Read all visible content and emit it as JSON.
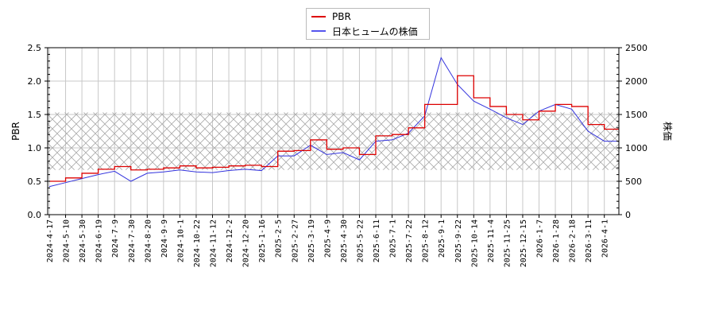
{
  "chart_data": {
    "type": "line",
    "title": "",
    "legend": {
      "position": "top-center",
      "entries": [
        {
          "label": "PBR",
          "color": "#dd0000"
        },
        {
          "label": "日本ヒュームの株価",
          "color": "#3333dd"
        }
      ]
    },
    "y_left": {
      "label": "PBR",
      "ticks": [
        "0.0",
        "0.5",
        "1.0",
        "1.5",
        "2.0",
        "2.5"
      ],
      "range": [
        0,
        2.5
      ]
    },
    "y_right": {
      "label": "株価",
      "ticks": [
        "0",
        "500",
        "1000",
        "1500",
        "2000",
        "2500"
      ],
      "range": [
        0,
        2500
      ]
    },
    "x_ticks": [
      "2024-4-17",
      "2024-5-10",
      "2024-5-30",
      "2024-6-19",
      "2024-7-9",
      "2024-7-30",
      "2024-8-20",
      "2024-9-9",
      "2024-10-1",
      "2024-10-22",
      "2024-11-12",
      "2024-12-2",
      "2024-12-20",
      "2025-1-16",
      "2025-2-5",
      "2025-2-27",
      "2025-3-19",
      "2025-4-9",
      "2025-4-30",
      "2025-5-22",
      "2025-6-11",
      "2025-7-1",
      "2025-7-22",
      "2025-8-12",
      "2025-9-1",
      "2025-9-22",
      "2025-10-14",
      "2025-11-4",
      "2025-11-25",
      "2025-12-15",
      "2026-1-7",
      "2026-1-28",
      "2026-2-18",
      "2026-3-11",
      "2026-4-1"
    ],
    "band": {
      "pbr_low": 0.67,
      "pbr_high": 1.53,
      "style": "cross-hatch"
    },
    "grid": true,
    "x": [
      "2024-4-17",
      "2024-5-10",
      "2024-5-30",
      "2024-6-19",
      "2024-7-9",
      "2024-7-30",
      "2024-8-20",
      "2024-9-9",
      "2024-10-1",
      "2024-10-22",
      "2024-11-12",
      "2024-12-2",
      "2024-12-20",
      "2025-1-16",
      "2025-2-5",
      "2025-2-27",
      "2025-3-19",
      "2025-4-9",
      "2025-4-30",
      "2025-5-22",
      "2025-6-11",
      "2025-7-1",
      "2025-7-22",
      "2025-8-12",
      "2025-9-1",
      "2025-9-22",
      "2025-10-14",
      "2025-11-4",
      "2025-11-25",
      "2025-12-15",
      "2026-1-7",
      "2026-1-28",
      "2026-2-18",
      "2026-3-11",
      "2026-4-1"
    ],
    "series": [
      {
        "name": "PBR",
        "values": [
          0.5,
          0.55,
          0.62,
          0.68,
          0.72,
          0.67,
          0.68,
          0.7,
          0.73,
          0.7,
          0.71,
          0.73,
          0.74,
          0.72,
          0.95,
          0.96,
          1.12,
          0.98,
          1.0,
          0.9,
          1.18,
          1.2,
          1.3,
          1.65,
          1.65,
          2.08,
          1.75,
          1.62,
          1.5,
          1.42,
          1.55,
          1.65,
          1.62,
          1.35,
          1.28
        ]
      },
      {
        "name": "日本ヒュームの株価",
        "values": [
          420,
          480,
          540,
          600,
          650,
          500,
          620,
          640,
          670,
          640,
          630,
          660,
          680,
          660,
          880,
          880,
          1040,
          900,
          930,
          820,
          1100,
          1120,
          1220,
          1480,
          2350,
          1950,
          1700,
          1580,
          1450,
          1350,
          1550,
          1650,
          1580,
          1250,
          1100
        ]
      }
    ]
  }
}
